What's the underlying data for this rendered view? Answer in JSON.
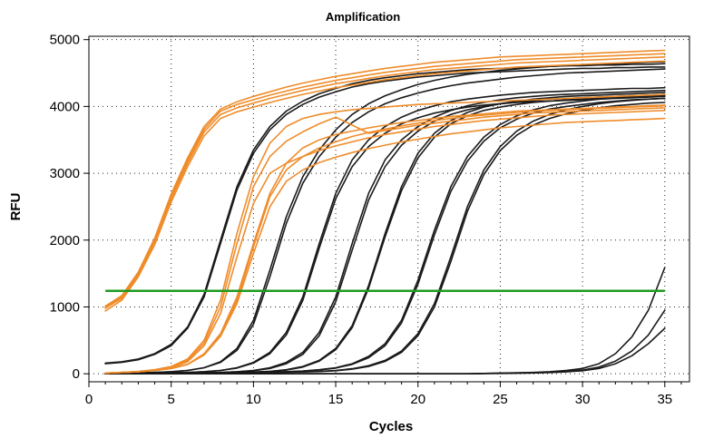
{
  "chart_data": {
    "type": "line",
    "title": "Amplification",
    "xlabel": "Cycles",
    "ylabel": "RFU",
    "xlim": [
      0,
      36.5
    ],
    "ylim": [
      -120,
      5050
    ],
    "xticks": [
      0,
      5,
      10,
      15,
      20,
      25,
      30,
      35
    ],
    "yticks": [
      0,
      1000,
      2000,
      3000,
      4000,
      5000
    ],
    "grid": true,
    "colors": {
      "standard": "#ef8c2a",
      "sample": "#1a1a1a",
      "threshold": "#1f9b1f"
    },
    "threshold": 1240,
    "series": [
      {
        "group": "standard",
        "values": [
          980,
          1130,
          1480,
          1970,
          2620,
          3150,
          3620,
          3880,
          3980,
          4050,
          4120,
          4180,
          4240,
          4290,
          4340,
          4380,
          4420,
          4460,
          4490,
          4520,
          4550,
          4570,
          4590,
          4610,
          4630,
          4650,
          4660,
          4670,
          4680,
          4690,
          4700,
          4710,
          4720,
          4730,
          4740
        ]
      },
      {
        "group": "standard",
        "values": [
          1000,
          1150,
          1500,
          2000,
          2660,
          3190,
          3660,
          3930,
          4030,
          4100,
          4170,
          4230,
          4290,
          4340,
          4390,
          4430,
          4470,
          4510,
          4540,
          4570,
          4600,
          4620,
          4640,
          4660,
          4680,
          4700,
          4710,
          4720,
          4730,
          4740,
          4750,
          4760,
          4770,
          4780,
          4790
        ]
      },
      {
        "group": "standard",
        "values": [
          1010,
          1170,
          1520,
          2030,
          2690,
          3230,
          3700,
          3960,
          4070,
          4150,
          4220,
          4290,
          4350,
          4400,
          4450,
          4490,
          4530,
          4570,
          4600,
          4630,
          4660,
          4680,
          4700,
          4720,
          4740,
          4750,
          4760,
          4770,
          4780,
          4790,
          4800,
          4810,
          4820,
          4830,
          4840
        ]
      },
      {
        "group": "standard",
        "values": [
          940,
          1100,
          1450,
          1930,
          2570,
          3100,
          3560,
          3820,
          3920,
          3990,
          4060,
          4120,
          4180,
          4230,
          4280,
          4320,
          4360,
          4400,
          4430,
          4460,
          4490,
          4510,
          4530,
          4550,
          4570,
          4590,
          4600,
          4610,
          4620,
          4630,
          4640,
          4650,
          4660,
          4670,
          4680
        ]
      },
      {
        "group": "standard",
        "values": [
          10,
          20,
          30,
          50,
          90,
          180,
          420,
          900,
          1750,
          2550,
          3000,
          3150,
          3250,
          3340,
          3410,
          3470,
          3530,
          3580,
          3620,
          3660,
          3700,
          3730,
          3760,
          3790,
          3810,
          3830,
          3850,
          3870,
          3880,
          3890,
          3900,
          3910,
          3920,
          3930,
          3940
        ]
      },
      {
        "group": "standard",
        "values": [
          10,
          20,
          30,
          55,
          100,
          200,
          460,
          1000,
          1950,
          2800,
          3250,
          3480,
          3620,
          3740,
          3840,
          3720,
          3600,
          3640,
          3680,
          3720,
          3750,
          3780,
          3810,
          3840,
          3860,
          3880,
          3900,
          3910,
          3920,
          3930,
          3940,
          3950,
          3960,
          3970,
          3980
        ]
      },
      {
        "group": "standard",
        "values": [
          10,
          20,
          35,
          60,
          110,
          220,
          500,
          1100,
          2100,
          2950,
          3450,
          3700,
          3820,
          3880,
          3920,
          3950,
          3970,
          3990,
          4010,
          4030,
          4040,
          4050,
          4060,
          4070,
          4080,
          4090,
          4100,
          4110,
          4120,
          4130,
          4140,
          4150,
          4160,
          4170,
          4180
        ]
      },
      {
        "group": "standard",
        "values": [
          10,
          20,
          30,
          50,
          80,
          140,
          280,
          560,
          1050,
          1800,
          2500,
          2880,
          3050,
          3160,
          3240,
          3310,
          3370,
          3420,
          3470,
          3510,
          3550,
          3590,
          3620,
          3650,
          3680,
          3700,
          3720,
          3740,
          3760,
          3770,
          3780,
          3790,
          3800,
          3810,
          3820
        ]
      },
      {
        "group": "standard",
        "values": [
          10,
          20,
          30,
          50,
          80,
          140,
          290,
          580,
          1100,
          1900,
          2650,
          3050,
          3250,
          3380,
          3470,
          3550,
          3610,
          3660,
          3710,
          3750,
          3790,
          3820,
          3850,
          3870,
          3890,
          3910,
          3930,
          3940,
          3950,
          3960,
          3970,
          3980,
          3990,
          4000,
          4010
        ]
      },
      {
        "group": "standard",
        "values": [
          10,
          20,
          30,
          50,
          80,
          140,
          300,
          600,
          1150,
          1950,
          2700,
          3150,
          3380,
          3500,
          3580,
          3630,
          3680,
          3720,
          3760,
          3790,
          3820,
          3850,
          3870,
          3890,
          3910,
          3930,
          3940,
          3950,
          3960,
          3970,
          3980,
          3990,
          4000,
          4010,
          4020
        ]
      },
      {
        "group": "sample",
        "values": [
          150,
          170,
          210,
          290,
          420,
          680,
          1150,
          1950,
          2750,
          3300,
          3650,
          3880,
          4030,
          4140,
          4220,
          4290,
          4340,
          4380,
          4410,
          4440,
          4460,
          4480,
          4500,
          4510,
          4520,
          4530,
          4540,
          4550,
          4560,
          4570,
          4570,
          4580,
          4580,
          4590,
          4590
        ]
      },
      {
        "group": "sample",
        "values": [
          160,
          180,
          220,
          300,
          440,
          700,
          1190,
          2000,
          2800,
          3350,
          3700,
          3930,
          4080,
          4190,
          4270,
          4340,
          4390,
          4430,
          4460,
          4490,
          4510,
          4530,
          4550,
          4560,
          4570,
          4580,
          4590,
          4600,
          4610,
          4610,
          4620,
          4620,
          4630,
          4630,
          4640
        ]
      },
      {
        "group": "sample",
        "values": [
          5,
          10,
          15,
          20,
          30,
          50,
          90,
          180,
          380,
          800,
          1550,
          2350,
          2950,
          3350,
          3650,
          3880,
          4040,
          4160,
          4250,
          4330,
          4390,
          4440,
          4480,
          4510,
          4540,
          4560,
          4580,
          4600,
          4610,
          4620,
          4630,
          4640,
          4650,
          4660,
          4670
        ]
      },
      {
        "group": "sample",
        "values": [
          5,
          10,
          15,
          20,
          30,
          50,
          90,
          170,
          350,
          740,
          1450,
          2250,
          2850,
          3250,
          3540,
          3760,
          3920,
          4040,
          4130,
          4200,
          4260,
          4310,
          4350,
          4380,
          4410,
          4440,
          4460,
          4480,
          4500,
          4510,
          4520,
          4530,
          4540,
          4550,
          4560
        ]
      },
      {
        "group": "sample",
        "values": [
          0,
          5,
          8,
          10,
          15,
          20,
          30,
          50,
          90,
          170,
          320,
          620,
          1150,
          1950,
          2700,
          3200,
          3500,
          3700,
          3840,
          3940,
          4010,
          4070,
          4110,
          4140,
          4170,
          4190,
          4210,
          4220,
          4230,
          4240,
          4250,
          4260,
          4270,
          4270,
          4280
        ]
      },
      {
        "group": "sample",
        "values": [
          0,
          5,
          8,
          10,
          15,
          20,
          30,
          50,
          85,
          160,
          300,
          580,
          1100,
          1880,
          2620,
          3100,
          3400,
          3600,
          3740,
          3830,
          3900,
          3950,
          3990,
          4020,
          4040,
          4060,
          4070,
          4080,
          4090,
          4100,
          4110,
          4120,
          4130,
          4140,
          4150
        ]
      },
      {
        "group": "sample",
        "values": [
          0,
          2,
          5,
          8,
          10,
          12,
          15,
          20,
          30,
          50,
          90,
          170,
          320,
          620,
          1150,
          1950,
          2700,
          3200,
          3500,
          3700,
          3840,
          3940,
          4010,
          4060,
          4100,
          4130,
          4150,
          4170,
          4180,
          4190,
          4200,
          4210,
          4220,
          4230,
          4240
        ]
      },
      {
        "group": "sample",
        "values": [
          0,
          2,
          5,
          8,
          10,
          12,
          15,
          20,
          28,
          45,
          80,
          150,
          290,
          570,
          1080,
          1850,
          2600,
          3100,
          3420,
          3630,
          3780,
          3880,
          3950,
          4000,
          4040,
          4070,
          4090,
          4110,
          4120,
          4130,
          4140,
          4150,
          4160,
          4170,
          4180
        ]
      },
      {
        "group": "sample",
        "values": [
          0,
          0,
          2,
          5,
          8,
          10,
          12,
          15,
          20,
          25,
          35,
          60,
          110,
          200,
          380,
          720,
          1320,
          2100,
          2800,
          3300,
          3600,
          3790,
          3910,
          3990,
          4040,
          4080,
          4110,
          4130,
          4150,
          4160,
          4170,
          4180,
          4190,
          4200,
          4210
        ]
      },
      {
        "group": "sample",
        "values": [
          0,
          0,
          2,
          5,
          8,
          10,
          12,
          15,
          20,
          25,
          35,
          55,
          100,
          190,
          360,
          690,
          1280,
          2050,
          2740,
          3230,
          3540,
          3740,
          3860,
          3940,
          3990,
          4030,
          4060,
          4080,
          4100,
          4110,
          4120,
          4130,
          4140,
          4150,
          4160
        ]
      },
      {
        "group": "sample",
        "values": [
          0,
          0,
          0,
          2,
          5,
          8,
          10,
          12,
          15,
          20,
          25,
          30,
          40,
          60,
          90,
          150,
          260,
          450,
          800,
          1400,
          2150,
          2800,
          3250,
          3540,
          3730,
          3860,
          3950,
          4010,
          4050,
          4080,
          4110,
          4130,
          4150,
          4160,
          4170
        ]
      },
      {
        "group": "sample",
        "values": [
          0,
          0,
          0,
          2,
          5,
          8,
          10,
          12,
          15,
          20,
          25,
          30,
          40,
          58,
          85,
          140,
          240,
          420,
          760,
          1340,
          2080,
          2730,
          3180,
          3480,
          3680,
          3810,
          3900,
          3960,
          4000,
          4030,
          4060,
          4080,
          4100,
          4110,
          4120
        ]
      },
      {
        "group": "sample",
        "values": [
          0,
          0,
          0,
          0,
          2,
          5,
          8,
          10,
          12,
          15,
          18,
          22,
          28,
          36,
          50,
          75,
          120,
          200,
          340,
          600,
          1050,
          1750,
          2500,
          3050,
          3400,
          3630,
          3780,
          3880,
          3950,
          4000,
          4040,
          4070,
          4090,
          4110,
          4120
        ]
      },
      {
        "group": "sample",
        "values": [
          0,
          0,
          0,
          0,
          2,
          5,
          8,
          10,
          12,
          15,
          18,
          22,
          28,
          34,
          46,
          68,
          110,
          185,
          320,
          570,
          1000,
          1680,
          2430,
          2980,
          3340,
          3570,
          3720,
          3820,
          3890,
          3940,
          3980,
          4010,
          4030,
          4050,
          4060
        ]
      },
      {
        "group": "sample",
        "values": [
          0,
          0,
          0,
          0,
          0,
          0,
          0,
          0,
          0,
          0,
          0,
          0,
          0,
          0,
          0,
          0,
          0,
          0,
          0,
          0,
          0,
          0,
          0,
          5,
          10,
          15,
          20,
          30,
          50,
          80,
          150,
          300,
          550,
          950,
          1590
        ]
      },
      {
        "group": "sample",
        "values": [
          0,
          0,
          0,
          0,
          0,
          0,
          0,
          0,
          0,
          0,
          0,
          0,
          0,
          0,
          0,
          0,
          0,
          0,
          0,
          0,
          0,
          0,
          0,
          5,
          8,
          12,
          15,
          22,
          35,
          55,
          100,
          190,
          340,
          580,
          950
        ]
      },
      {
        "group": "sample",
        "values": [
          0,
          0,
          0,
          0,
          0,
          0,
          0,
          0,
          0,
          0,
          0,
          0,
          0,
          0,
          0,
          0,
          0,
          0,
          0,
          0,
          0,
          0,
          0,
          2,
          5,
          8,
          12,
          18,
          28,
          45,
          80,
          150,
          270,
          450,
          680
        ]
      }
    ]
  }
}
